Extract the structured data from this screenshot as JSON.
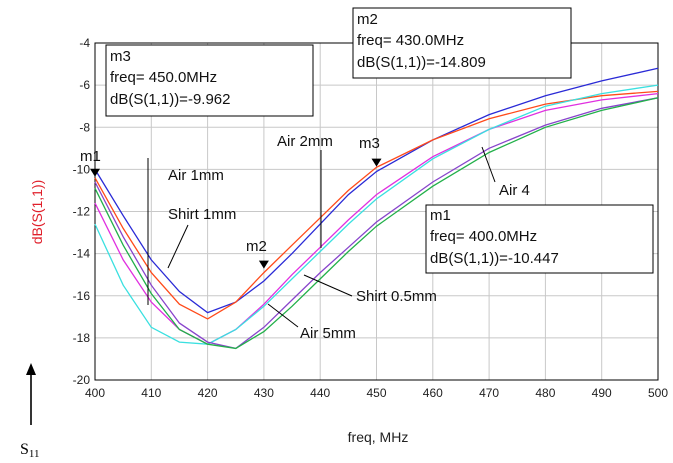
{
  "chart_data": {
    "type": "line",
    "xlabel": "freq, MHz",
    "ylabel": "dB(S(1,1))",
    "xlim": [
      400,
      500
    ],
    "ylim": [
      -20,
      -4
    ],
    "x_ticks": [
      "400",
      "410",
      "420",
      "430",
      "440",
      "450",
      "460",
      "470",
      "480",
      "490",
      "500"
    ],
    "y_ticks": [
      "-4",
      "-6",
      "-8",
      "-10",
      "-12",
      "-14",
      "-16",
      "-18",
      "-20"
    ],
    "grid": true,
    "series": [
      {
        "color": "#2a2ad6",
        "x": [
          400,
          405,
          410,
          415,
          420,
          425,
          430,
          435,
          440,
          445,
          450,
          460,
          470,
          480,
          490,
          500
        ],
        "y": [
          -10.0,
          -12.2,
          -14.3,
          -15.8,
          -16.8,
          -16.3,
          -15.3,
          -14.0,
          -12.6,
          -11.2,
          -10.1,
          -8.6,
          -7.4,
          -6.5,
          -5.8,
          -5.2
        ]
      },
      {
        "color": "#ff4a1a",
        "x": [
          400,
          405,
          410,
          415,
          420,
          425,
          430,
          435,
          440,
          445,
          450,
          460,
          470,
          480,
          490,
          500
        ],
        "y": [
          -10.4,
          -12.8,
          -14.9,
          -16.4,
          -17.1,
          -16.3,
          -14.9,
          -13.6,
          -12.3,
          -11.0,
          -9.9,
          -8.6,
          -7.6,
          -6.9,
          -6.5,
          -6.3
        ]
      },
      {
        "color": "#e030e0",
        "x": [
          400,
          405,
          410,
          415,
          420,
          425,
          430,
          435,
          440,
          445,
          450,
          460,
          470,
          480,
          490,
          500
        ],
        "y": [
          -11.6,
          -14.3,
          -16.3,
          -17.6,
          -18.3,
          -17.6,
          -16.4,
          -15.0,
          -13.7,
          -12.4,
          -11.2,
          -9.4,
          -8.1,
          -7.2,
          -6.7,
          -6.4
        ]
      },
      {
        "color": "#3ae0e0",
        "x": [
          400,
          405,
          410,
          415,
          420,
          425,
          430,
          435,
          440,
          445,
          450,
          460,
          470,
          480,
          490,
          500
        ],
        "y": [
          -12.6,
          -15.5,
          -17.5,
          -18.2,
          -18.3,
          -17.6,
          -16.5,
          -15.2,
          -13.9,
          -12.6,
          -11.4,
          -9.5,
          -8.1,
          -7.0,
          -6.4,
          -6.0
        ]
      },
      {
        "color": "#8844cc",
        "x": [
          400,
          405,
          410,
          415,
          420,
          425,
          430,
          435,
          440,
          445,
          450,
          460,
          470,
          480,
          490,
          500
        ],
        "y": [
          -10.6,
          -13.2,
          -15.5,
          -17.3,
          -18.2,
          -18.5,
          -17.5,
          -16.2,
          -14.9,
          -13.7,
          -12.5,
          -10.6,
          -9.0,
          -7.9,
          -7.1,
          -6.6
        ]
      },
      {
        "color": "#22b04a",
        "x": [
          400,
          405,
          410,
          415,
          420,
          425,
          430,
          435,
          440,
          445,
          450,
          460,
          470,
          480,
          490,
          500
        ],
        "y": [
          -10.9,
          -13.6,
          -15.9,
          -17.6,
          -18.3,
          -18.5,
          -17.7,
          -16.5,
          -15.2,
          -13.9,
          -12.7,
          -10.8,
          -9.2,
          -8.0,
          -7.2,
          -6.6
        ]
      }
    ],
    "markers": [
      {
        "label": "m1",
        "x": 400,
        "y": -10.447
      },
      {
        "label": "m2",
        "x": 430,
        "y": -14.809
      },
      {
        "label": "m3",
        "x": 450,
        "y": -9.962
      }
    ],
    "marker_boxes": [
      {
        "lines": [
          "m3",
          "freq= 450.0MHz",
          "dB(S(1,1))=-9.962"
        ]
      },
      {
        "lines": [
          "m2",
          "freq= 430.0MHz",
          "dB(S(1,1))=-14.809"
        ]
      },
      {
        "lines": [
          "m1",
          "freq= 400.0MHz",
          "dB(S(1,1))=-10.447"
        ]
      }
    ],
    "annotations": [
      "Air 1mm",
      "Shirt 1mm",
      "Air 2mm",
      "Air 4",
      "Shirt 0.5mm",
      "Air 5mm"
    ],
    "bottom_label": "S11"
  }
}
